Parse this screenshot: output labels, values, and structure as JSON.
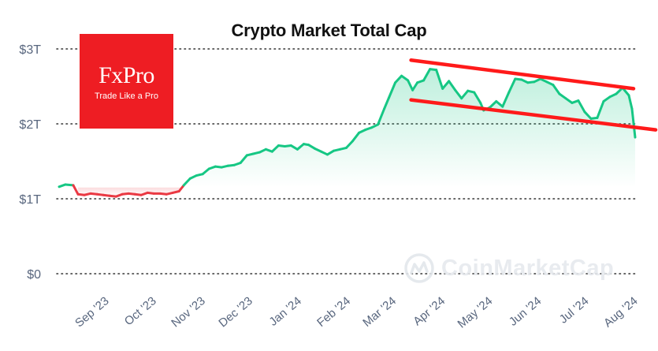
{
  "title": "Crypto Market Total Cap",
  "logo": {
    "brand": "FxPro",
    "tagline": "Trade Like a Pro",
    "color": "#ee1d23"
  },
  "watermark": "CoinMarketCap",
  "colors": {
    "up": "#16c784",
    "down": "#ea3943",
    "trend": "#ff1a1a",
    "grid": "#333333"
  },
  "chart_data": {
    "type": "area",
    "title": "Crypto Market Total Cap",
    "y_ticks": [
      {
        "value": 0,
        "label": "$0"
      },
      {
        "value": 1,
        "label": "$1T"
      },
      {
        "value": 2,
        "label": "$2T"
      },
      {
        "value": 3,
        "label": "$3T"
      }
    ],
    "x_ticks": [
      {
        "date": "2023-09-01",
        "label": "Sep '23"
      },
      {
        "date": "2023-10-01",
        "label": "Oct '23"
      },
      {
        "date": "2023-11-01",
        "label": "Nov '23"
      },
      {
        "date": "2023-12-01",
        "label": "Dec '23"
      },
      {
        "date": "2024-01-01",
        "label": "Jan '24"
      },
      {
        "date": "2024-02-01",
        "label": "Feb '24"
      },
      {
        "date": "2024-03-01",
        "label": "Mar '24"
      },
      {
        "date": "2024-04-01",
        "label": "Apr '24"
      },
      {
        "date": "2024-05-01",
        "label": "May '24"
      },
      {
        "date": "2024-06-01",
        "label": "Jun '24"
      },
      {
        "date": "2024-07-01",
        "label": "Jul '24"
      },
      {
        "date": "2024-08-01",
        "label": "Aug '24"
      }
    ],
    "ylim": [
      0,
      3
    ],
    "y_unit": "trillion USD",
    "grid": true,
    "reference_level": 1.15,
    "series": [
      {
        "x": [
          "2023-08-06",
          "2023-08-10",
          "2023-08-15",
          "2023-08-18",
          "2023-08-22",
          "2023-08-26",
          "2023-08-30",
          "2023-09-03",
          "2023-09-07",
          "2023-09-11",
          "2023-09-15",
          "2023-09-19",
          "2023-09-23",
          "2023-09-27",
          "2023-10-01",
          "2023-10-05",
          "2023-10-09",
          "2023-10-13",
          "2023-10-17",
          "2023-10-21",
          "2023-10-24",
          "2023-10-28",
          "2023-11-01",
          "2023-11-05",
          "2023-11-09",
          "2023-11-13",
          "2023-11-17",
          "2023-11-21",
          "2023-11-25",
          "2023-11-29",
          "2023-12-03",
          "2023-12-07",
          "2023-12-11",
          "2023-12-15",
          "2023-12-19",
          "2023-12-23",
          "2023-12-27",
          "2023-12-31",
          "2024-01-04",
          "2024-01-08",
          "2024-01-11",
          "2024-01-15",
          "2024-01-19",
          "2024-01-23",
          "2024-01-27",
          "2024-01-31",
          "2024-02-04",
          "2024-02-08",
          "2024-02-12",
          "2024-02-16",
          "2024-02-20",
          "2024-02-24",
          "2024-02-28",
          "2024-03-02",
          "2024-03-06",
          "2024-03-10",
          "2024-03-14",
          "2024-03-17",
          "2024-03-20",
          "2024-03-24",
          "2024-03-28",
          "2024-04-01",
          "2024-04-05",
          "2024-04-09",
          "2024-04-13",
          "2024-04-17",
          "2024-04-21",
          "2024-04-25",
          "2024-04-29",
          "2024-05-01",
          "2024-05-05",
          "2024-05-09",
          "2024-05-13",
          "2024-05-17",
          "2024-05-21",
          "2024-05-25",
          "2024-05-29",
          "2024-06-02",
          "2024-06-06",
          "2024-06-10",
          "2024-06-14",
          "2024-06-18",
          "2024-06-22",
          "2024-06-26",
          "2024-06-30",
          "2024-07-04",
          "2024-07-08",
          "2024-07-12",
          "2024-07-16",
          "2024-07-20",
          "2024-07-24",
          "2024-07-28",
          "2024-08-01",
          "2024-08-03",
          "2024-08-05"
        ],
        "values": [
          1.16,
          1.19,
          1.18,
          1.06,
          1.05,
          1.07,
          1.06,
          1.05,
          1.04,
          1.03,
          1.06,
          1.07,
          1.06,
          1.05,
          1.08,
          1.07,
          1.07,
          1.06,
          1.08,
          1.1,
          1.18,
          1.27,
          1.31,
          1.33,
          1.4,
          1.43,
          1.42,
          1.44,
          1.45,
          1.48,
          1.58,
          1.6,
          1.62,
          1.66,
          1.63,
          1.71,
          1.7,
          1.71,
          1.66,
          1.73,
          1.72,
          1.67,
          1.63,
          1.59,
          1.64,
          1.66,
          1.68,
          1.77,
          1.88,
          1.92,
          1.95,
          1.99,
          2.2,
          2.35,
          2.55,
          2.64,
          2.58,
          2.45,
          2.55,
          2.58,
          2.73,
          2.72,
          2.47,
          2.57,
          2.45,
          2.34,
          2.44,
          2.42,
          2.28,
          2.18,
          2.22,
          2.3,
          2.23,
          2.42,
          2.6,
          2.59,
          2.55,
          2.56,
          2.6,
          2.56,
          2.52,
          2.4,
          2.34,
          2.28,
          2.31,
          2.16,
          2.07,
          2.08,
          2.3,
          2.36,
          2.4,
          2.48,
          2.38,
          2.2,
          1.82
        ]
      }
    ],
    "trendlines": [
      {
        "x": [
          "2024-03-16",
          "2024-08-04"
        ],
        "values": [
          2.85,
          2.47
        ]
      },
      {
        "x": [
          "2024-03-16",
          "2024-08-18"
        ],
        "values": [
          2.32,
          1.92
        ]
      }
    ]
  }
}
